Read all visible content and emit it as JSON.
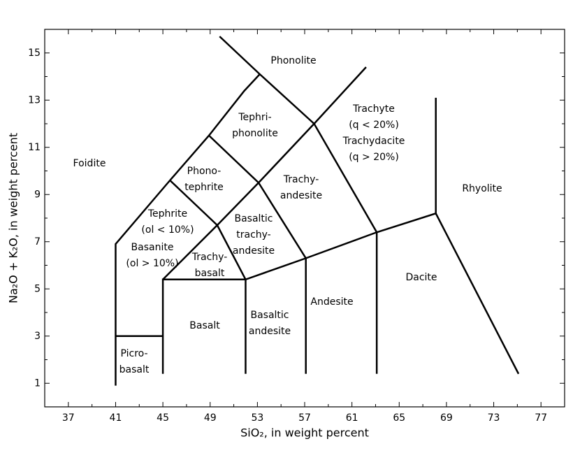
{
  "chart_data": {
    "type": "line",
    "xlabel": "SiO₂, in weight percent",
    "ylabel": "Na₂O + K₂O, in weight percent",
    "xlim": [
      35,
      79
    ],
    "ylim": [
      0,
      16
    ],
    "xticks": [
      37,
      41,
      45,
      49,
      53,
      57,
      61,
      65,
      69,
      73,
      77
    ],
    "yticks": [
      1,
      3,
      5,
      7,
      9,
      11,
      13,
      15
    ],
    "xminorticks": [
      39,
      43,
      47,
      51,
      55,
      59,
      63,
      67,
      71,
      75
    ],
    "yminorticks": [
      2,
      4,
      6,
      8,
      10,
      12,
      14
    ],
    "color": "#000000",
    "series": [
      {
        "x": [
          41,
          41,
          45.6,
          48.9,
          51.9,
          53.2
        ],
        "values": [
          0.9,
          6.9,
          9.6,
          11.5,
          13.4,
          14.1
        ]
      },
      {
        "x": [
          49.8,
          53.2,
          57.8,
          63.1,
          63.1
        ],
        "values": [
          15.7,
          14.1,
          12.0,
          7.4,
          1.4
        ]
      },
      {
        "x": [
          41,
          45
        ],
        "values": [
          3,
          3
        ]
      },
      {
        "x": [
          45,
          45,
          52,
          57.1,
          63.1,
          68.1,
          75.1
        ],
        "values": [
          1.4,
          5.4,
          5.4,
          6.3,
          7.4,
          8.2,
          1.4
        ]
      },
      {
        "x": [
          68.1,
          68.1
        ],
        "values": [
          13.1,
          8.2
        ]
      },
      {
        "x": [
          45,
          49.6,
          52,
          52
        ],
        "values": [
          5.4,
          7.7,
          5.4,
          1.4
        ]
      },
      {
        "x": [
          45.6,
          49.6,
          53.1,
          57.8,
          62.2
        ],
        "values": [
          9.6,
          7.7,
          9.5,
          12.0,
          14.4
        ]
      },
      {
        "x": [
          48.9,
          53.1,
          57.1,
          57.1
        ],
        "values": [
          11.5,
          9.5,
          6.3,
          1.4
        ]
      }
    ],
    "annotations": [
      [
        "Phonolite"
      ],
      [
        "Tephri-",
        "phonolite"
      ],
      [
        "Trachyte",
        "(q < 20%)",
        "Trachydacite",
        "(q > 20%)"
      ],
      [
        "Foidite"
      ],
      [
        "Phono-",
        "tephrite"
      ],
      [
        "Trachy-",
        "andesite"
      ],
      [
        "Rhyolite"
      ],
      [
        "Tephrite",
        "(ol < 10%)"
      ],
      [
        "Basaltic",
        "trachy-",
        "andesite"
      ],
      [
        "Basanite",
        "(ol > 10%)"
      ],
      [
        "Trachy-",
        "basalt"
      ],
      [
        "Dacite"
      ],
      [
        "Andesite"
      ],
      [
        "Basalt"
      ],
      [
        "Basaltic",
        "andesite"
      ],
      [
        "Picro-",
        "basalt"
      ]
    ]
  }
}
